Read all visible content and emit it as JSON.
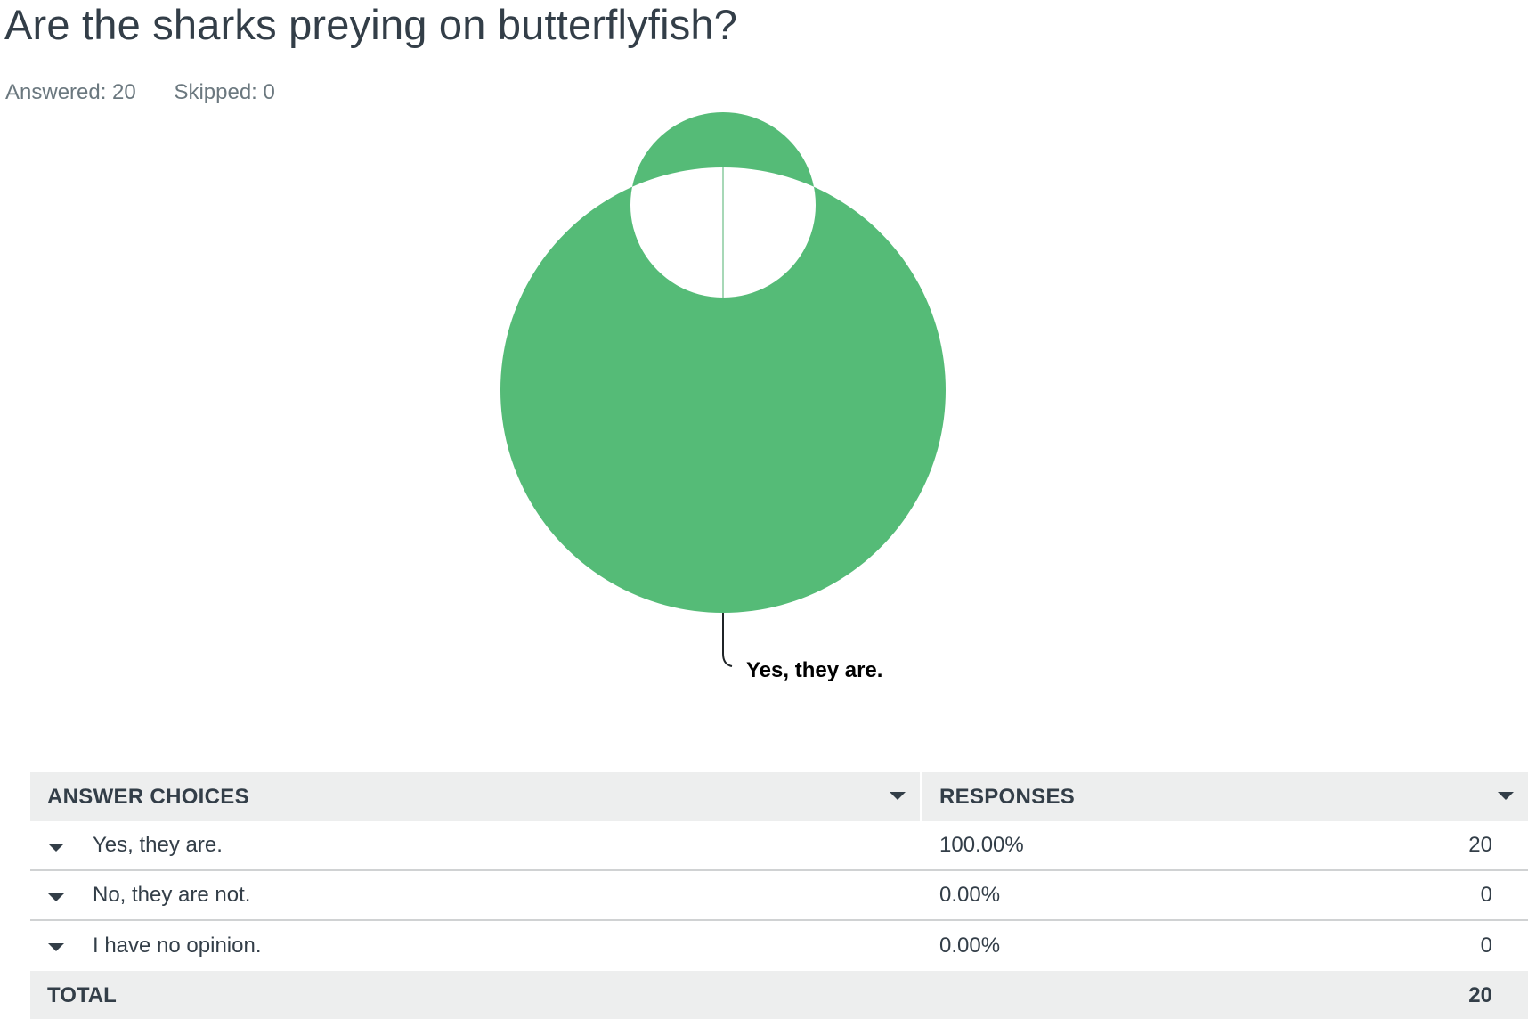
{
  "question": {
    "title": "Are the sharks preying on butterflyfish?",
    "answered_label": "Answered: 20",
    "skipped_label": "Skipped: 0"
  },
  "colors": {
    "slice": "#55bb77",
    "leader": "#1f2427"
  },
  "chart_data": {
    "type": "pie",
    "variant": "donut",
    "categories": [
      "Yes, they are.",
      "No, they are not.",
      "I have no opinion."
    ],
    "values": [
      20,
      0,
      0
    ],
    "percentages": [
      100.0,
      0.0,
      0.0
    ],
    "labels_shown": [
      "Yes, they are."
    ]
  },
  "table": {
    "headers": {
      "answer_choices": "ANSWER CHOICES",
      "responses": "RESPONSES"
    },
    "rows": [
      {
        "choice": "Yes, they are.",
        "percent": "100.00%",
        "count": "20"
      },
      {
        "choice": "No, they are not.",
        "percent": "0.00%",
        "count": "0"
      },
      {
        "choice": "I have no opinion.",
        "percent": "0.00%",
        "count": "0"
      }
    ],
    "total": {
      "label": "TOTAL",
      "count": "20"
    }
  }
}
